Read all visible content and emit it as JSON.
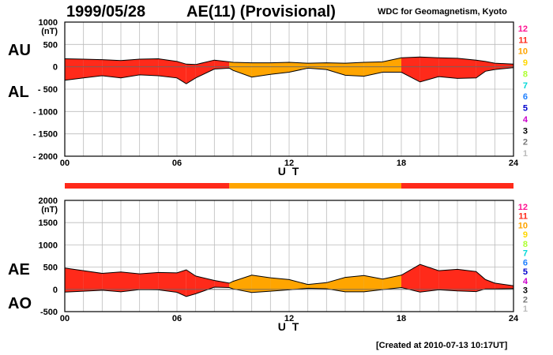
{
  "header": {
    "date": "1999/05/28",
    "title": "AE(11) (Provisional)",
    "organization": "WDC for Geomagnetism, Kyoto"
  },
  "footer": {
    "created": "[Created at 2010-07-13 10:17UT]"
  },
  "colors": {
    "fill_red": "#ff3010",
    "fill_orange": "#ffa500",
    "outline": "#000000",
    "grid": "#bbbbbb"
  },
  "legend_levels": [
    {
      "label": "12",
      "color": "#ff1493"
    },
    {
      "label": "11",
      "color": "#ff2a1a"
    },
    {
      "label": "10",
      "color": "#ffa500"
    },
    {
      "label": "9",
      "color": "#ffd700"
    },
    {
      "label": "8",
      "color": "#adff2f"
    },
    {
      "label": "7",
      "color": "#00d8d8"
    },
    {
      "label": "6",
      "color": "#1e7fff"
    },
    {
      "label": "5",
      "color": "#0000cd"
    },
    {
      "label": "4",
      "color": "#cc00cc"
    },
    {
      "label": "3",
      "color": "#000000"
    },
    {
      "label": "2",
      "color": "#777777"
    },
    {
      "label": "1",
      "color": "#bbbbbb"
    }
  ],
  "station_level_bar": [
    {
      "x_range": [
        0,
        8.8
      ],
      "level": "11",
      "color": "#ff2a1a"
    },
    {
      "x_range": [
        8.8,
        18.0
      ],
      "level": "10",
      "color": "#ffa500"
    },
    {
      "x_range": [
        18.0,
        24
      ],
      "level": "11",
      "color": "#ff2a1a"
    }
  ],
  "chart_data": [
    {
      "type": "area",
      "xlabel": "U T",
      "ylabel_unit": "(nT)",
      "labels": [
        "AU",
        "AL"
      ],
      "xlim": [
        0,
        24
      ],
      "ylim": [
        -2000,
        1000
      ],
      "x_ticks": [
        "00",
        "06",
        "12",
        "18",
        "24"
      ],
      "y_ticks": [
        "1000",
        "500",
        "0",
        "- 500",
        "- 1000",
        "- 1500",
        "- 2000"
      ],
      "grid": true,
      "x": [
        0,
        1,
        2,
        3,
        4,
        5,
        6,
        6.5,
        7,
        8,
        8.8,
        9,
        10,
        11,
        12,
        13,
        14,
        15,
        16,
        17,
        18,
        19,
        20,
        21,
        22,
        22.5,
        23,
        24
      ],
      "series": [
        {
          "key": "AU",
          "values": [
            180,
            170,
            160,
            140,
            170,
            180,
            120,
            60,
            50,
            150,
            110,
            100,
            90,
            90,
            100,
            80,
            90,
            80,
            100,
            110,
            200,
            220,
            200,
            190,
            150,
            120,
            80,
            60
          ]
        },
        {
          "key": "AL",
          "values": [
            -300,
            -250,
            -200,
            -250,
            -180,
            -200,
            -250,
            -380,
            -250,
            -50,
            -30,
            -80,
            -230,
            -170,
            -120,
            -30,
            -60,
            -190,
            -210,
            -120,
            -120,
            -340,
            -220,
            -260,
            -250,
            -100,
            -60,
            -20
          ]
        }
      ]
    },
    {
      "type": "area",
      "xlabel": "U T",
      "ylabel_unit": "(nT)",
      "labels": [
        "AE",
        "AO"
      ],
      "xlim": [
        0,
        24
      ],
      "ylim": [
        -500,
        2000
      ],
      "x_ticks": [
        "00",
        "06",
        "12",
        "18",
        "24"
      ],
      "y_ticks": [
        "2000",
        "1500",
        "1000",
        "500",
        "0",
        "-500"
      ],
      "grid": true,
      "x": [
        0,
        1,
        2,
        3,
        4,
        5,
        6,
        6.5,
        7,
        8,
        8.8,
        9,
        10,
        11,
        12,
        13,
        14,
        15,
        16,
        17,
        18,
        19,
        20,
        21,
        22,
        22.5,
        23,
        24
      ],
      "series": [
        {
          "key": "AE",
          "values": [
            480,
            420,
            360,
            390,
            350,
            380,
            370,
            440,
            300,
            200,
            140,
            180,
            320,
            260,
            220,
            110,
            150,
            270,
            310,
            230,
            320,
            560,
            420,
            450,
            400,
            220,
            140,
            80
          ]
        },
        {
          "key": "AO",
          "values": [
            -60,
            -40,
            -20,
            -55,
            -5,
            -10,
            -65,
            -160,
            -100,
            50,
            40,
            10,
            -70,
            -40,
            -10,
            25,
            15,
            -55,
            -55,
            -5,
            40,
            -60,
            -10,
            -35,
            -50,
            10,
            10,
            20
          ]
        }
      ]
    }
  ]
}
